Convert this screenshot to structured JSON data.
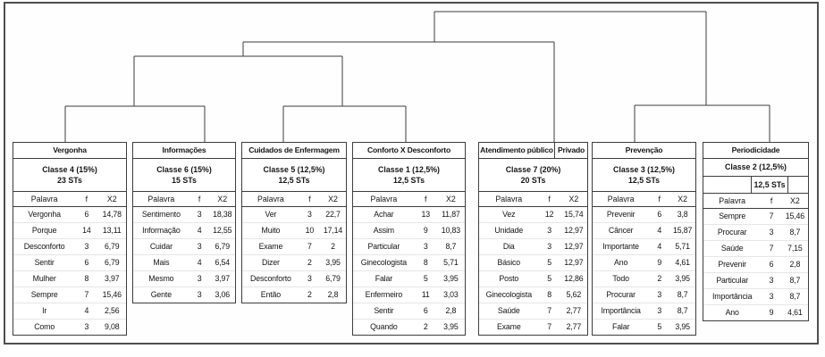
{
  "diagram": {
    "kind": "descending-hierarchical-classification-dendrogram",
    "groupings": [
      [
        [
          [
            "Vergonha",
            "Informações"
          ],
          [
            "Cuidados de Enfermagem",
            "Conforto X Desconforto"
          ]
        ],
        "Atendimento público Privado"
      ],
      [
        "Prevenção",
        "Periodicidade"
      ]
    ]
  },
  "tables": [
    {
      "title": "Vergonha",
      "classe": "Classe 4 (15%)",
      "sts": "23 STs",
      "headers": [
        "Palavra",
        "f",
        "X2"
      ],
      "rows": [
        [
          "Vergonha",
          "6",
          "14,78"
        ],
        [
          "Porque",
          "14",
          "13,11"
        ],
        [
          "Desconforto",
          "3",
          "6,79"
        ],
        [
          "Sentir",
          "6",
          "6,79"
        ],
        [
          "Mulher",
          "8",
          "3,97"
        ],
        [
          "Sempre",
          "7",
          "15,46"
        ],
        [
          "Ir",
          "4",
          "2,56"
        ],
        [
          "Como",
          "3",
          "9,08"
        ]
      ]
    },
    {
      "title": "Informações",
      "classe": "Classe 6 (15%)",
      "sts": "15 STs",
      "headers": [
        "Palavra",
        "f",
        "X2"
      ],
      "rows": [
        [
          "Sentimento",
          "3",
          "18,38"
        ],
        [
          "Informação",
          "4",
          "12,55"
        ],
        [
          "Cuidar",
          "3",
          "6,79"
        ],
        [
          "Mais",
          "4",
          "6,54"
        ],
        [
          "Mesmo",
          "3",
          "3,97"
        ],
        [
          "Gente",
          "3",
          "3,06"
        ]
      ]
    },
    {
      "title": "Cuidados de Enfermagem",
      "classe": "Classe 5 (12,5%)",
      "sts": "12,5 STs",
      "headers": [
        "Palavra",
        "f",
        "X2"
      ],
      "rows": [
        [
          "Ver",
          "3",
          "22,7"
        ],
        [
          "Muito",
          "10",
          "17,14"
        ],
        [
          "Exame",
          "7",
          "2"
        ],
        [
          "Dizer",
          "2",
          "3,95"
        ],
        [
          "Desconforto",
          "3",
          "6,79"
        ],
        [
          "Então",
          "2",
          "2,8"
        ]
      ]
    },
    {
      "title": "Conforto X Desconforto",
      "classe": "Classe 1 (12,5%)",
      "sts": "12,5 STs",
      "headers": [
        "Palavra",
        "f",
        "X2"
      ],
      "rows": [
        [
          "Achar",
          "13",
          "11,87"
        ],
        [
          "Assim",
          "9",
          "10,83"
        ],
        [
          "Particular",
          "3",
          "8,7"
        ],
        [
          "Ginecologista",
          "8",
          "5,71"
        ],
        [
          "Falar",
          "5",
          "3,95"
        ],
        [
          "Enfermeiro",
          "11",
          "3,03"
        ],
        [
          "Sentir",
          "6",
          "2,8"
        ],
        [
          "Quando",
          "2",
          "3,95"
        ]
      ]
    },
    {
      "title": "Atendimento público",
      "title_right": "Privado",
      "classe": "Classe 7 (20%)",
      "sts": "20 STs",
      "headers": [
        "Palavra",
        "f",
        "X2"
      ],
      "rows": [
        [
          "Vez",
          "12",
          "15,74"
        ],
        [
          "Unidade",
          "3",
          "12,97"
        ],
        [
          "Dia",
          "3",
          "12,97"
        ],
        [
          "Básico",
          "5",
          "12,97"
        ],
        [
          "Posto",
          "5",
          "12,86"
        ],
        [
          "Ginecologista",
          "8",
          "5,62"
        ],
        [
          "Saúde",
          "7",
          "2,77"
        ],
        [
          "Exame",
          "7",
          "2,77"
        ]
      ]
    },
    {
      "title": "Prevenção",
      "classe": "Classe 3 (12,5%)",
      "sts": "12,5 STs",
      "headers": [
        "Palavra",
        "f",
        "X2"
      ],
      "rows": [
        [
          "Prevenir",
          "6",
          "3,8"
        ],
        [
          "Câncer",
          "4",
          "15,87"
        ],
        [
          "Importante",
          "4",
          "5,71"
        ],
        [
          "Ano",
          "9",
          "4,61"
        ],
        [
          "Todo",
          "2",
          "3,95"
        ],
        [
          "Procurar",
          "3",
          "8,7"
        ],
        [
          "Importância",
          "3",
          "8,7"
        ],
        [
          "Falar",
          "5",
          "3,95"
        ]
      ]
    },
    {
      "title": "Periodicidade",
      "classe": "Classe 2 (12,5%)",
      "sts": "12,5 STs",
      "headers": [
        "Palavra",
        "f",
        "X2"
      ],
      "rows": [
        [
          "Sempre",
          "7",
          "15,46"
        ],
        [
          "Procurar",
          "3",
          "8,7"
        ],
        [
          "Saúde",
          "7",
          "7,15"
        ],
        [
          "Prevenir",
          "6",
          "2,8"
        ],
        [
          "Particular",
          "3",
          "8,7"
        ],
        [
          "Importância",
          "3",
          "8,7"
        ],
        [
          "Ano",
          "9",
          "4,61"
        ]
      ]
    }
  ]
}
